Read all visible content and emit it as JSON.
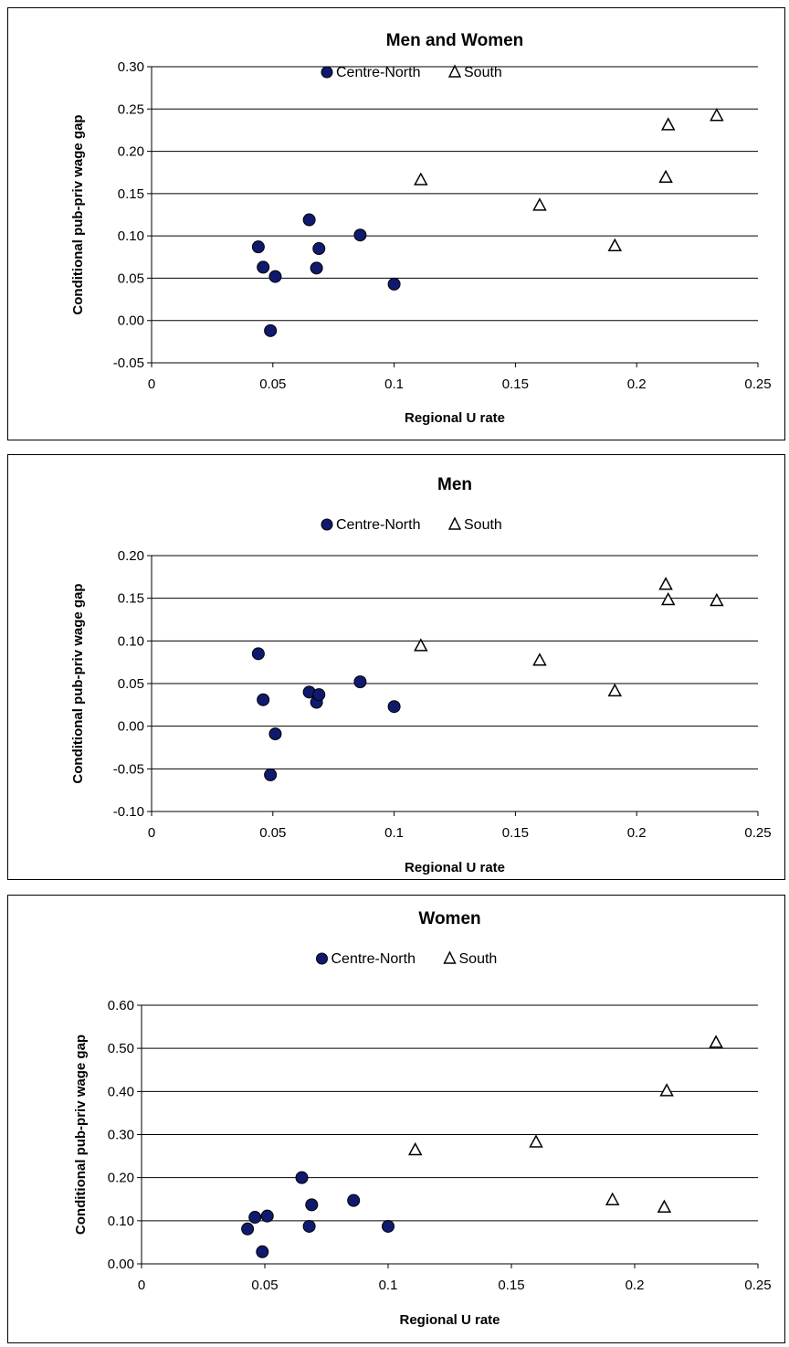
{
  "chart_data": [
    {
      "type": "scatter",
      "title": "Men and Women",
      "xlabel": "Regional U rate",
      "ylabel": "Conditional pub-priv wage gap",
      "xlim": [
        0,
        0.25
      ],
      "ylim": [
        -0.05,
        0.3
      ],
      "xticks": [
        "0",
        "0.05",
        "0.1",
        "0.15",
        "0.2",
        "0.25"
      ],
      "yticks": [
        "-0.05",
        "0.00",
        "0.05",
        "0.10",
        "0.15",
        "0.20",
        "0.25",
        "0.30"
      ],
      "grid": "horizontal",
      "legend": "top-center",
      "series": [
        {
          "name": "Centre-North",
          "marker": "circle",
          "color": "#0f1a6e",
          "x": [
            0.044,
            0.046,
            0.049,
            0.051,
            0.065,
            0.068,
            0.069,
            0.086,
            0.1
          ],
          "y": [
            0.087,
            0.063,
            -0.012,
            0.052,
            0.119,
            0.062,
            0.085,
            0.101,
            0.043
          ]
        },
        {
          "name": "South",
          "marker": "triangle",
          "color": "#ffffff",
          "x": [
            0.111,
            0.16,
            0.191,
            0.212,
            0.213,
            0.233
          ],
          "y": [
            0.166,
            0.136,
            0.088,
            0.169,
            0.231,
            0.242
          ]
        }
      ]
    },
    {
      "type": "scatter",
      "title": "Men",
      "xlabel": "Regional U rate",
      "ylabel": "Conditional pub-priv wage gap",
      "xlim": [
        0,
        0.25
      ],
      "ylim": [
        -0.1,
        0.2
      ],
      "xticks": [
        "0",
        "0.05",
        "0.1",
        "0.15",
        "0.2",
        "0.25"
      ],
      "yticks": [
        "-0.10",
        "-0.05",
        "0.00",
        "0.05",
        "0.10",
        "0.15",
        "0.20"
      ],
      "grid": "horizontal",
      "legend": "top-center",
      "series": [
        {
          "name": "Centre-North",
          "marker": "circle",
          "color": "#0f1a6e",
          "x": [
            0.044,
            0.046,
            0.049,
            0.051,
            0.065,
            0.068,
            0.069,
            0.086,
            0.1
          ],
          "y": [
            0.085,
            0.031,
            -0.057,
            -0.009,
            0.04,
            0.028,
            0.037,
            0.052,
            0.023
          ]
        },
        {
          "name": "South",
          "marker": "triangle",
          "color": "#ffffff",
          "x": [
            0.111,
            0.16,
            0.191,
            0.212,
            0.213,
            0.233
          ],
          "y": [
            0.094,
            0.077,
            0.041,
            0.166,
            0.148,
            0.147
          ]
        }
      ]
    },
    {
      "type": "scatter",
      "title": "Women",
      "xlabel": "Regional U rate",
      "ylabel": "Conditional pub-priv wage gap",
      "xlim": [
        0,
        0.25
      ],
      "ylim": [
        0.0,
        0.6
      ],
      "xticks": [
        "0",
        "0.05",
        "0.1",
        "0.15",
        "0.2",
        "0.25"
      ],
      "yticks": [
        "0.00",
        "0.10",
        "0.20",
        "0.30",
        "0.40",
        "0.50",
        "0.60"
      ],
      "grid": "horizontal",
      "legend": "top-center",
      "series": [
        {
          "name": "Centre-North",
          "marker": "circle",
          "color": "#0f1a6e",
          "x": [
            0.043,
            0.046,
            0.049,
            0.051,
            0.065,
            0.068,
            0.069,
            0.086,
            0.1
          ],
          "y": [
            0.081,
            0.108,
            0.028,
            0.111,
            0.2,
            0.087,
            0.137,
            0.147,
            0.087
          ]
        },
        {
          "name": "South",
          "marker": "triangle",
          "color": "#ffffff",
          "x": [
            0.111,
            0.16,
            0.191,
            0.212,
            0.213,
            0.233
          ],
          "y": [
            0.264,
            0.282,
            0.148,
            0.131,
            0.401,
            0.513
          ]
        }
      ]
    }
  ]
}
